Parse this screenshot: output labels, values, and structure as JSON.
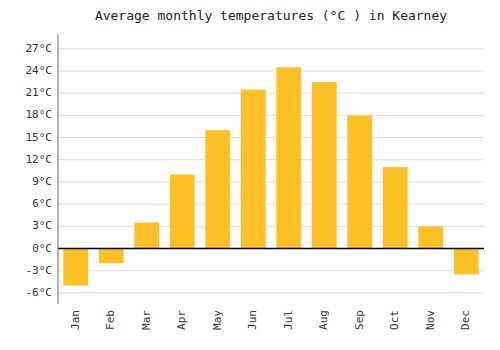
{
  "chart_data": {
    "type": "bar",
    "title": "Average monthly temperatures (°C ) in Kearney",
    "categories": [
      "Jan",
      "Feb",
      "Mar",
      "Apr",
      "May",
      "Jun",
      "Jul",
      "Aug",
      "Sep",
      "Oct",
      "Nov",
      "Dec"
    ],
    "values": [
      -5.0,
      -2.0,
      3.5,
      10.0,
      16.0,
      21.5,
      24.5,
      22.5,
      18.0,
      11.0,
      3.0,
      -3.5
    ],
    "color": "#FFC125",
    "ylim": [
      -7.5,
      29
    ],
    "yticks": [
      {
        "value": -6,
        "label": "-6°C"
      },
      {
        "value": -3,
        "label": "-3°C"
      },
      {
        "value": 0,
        "label": "0°C"
      },
      {
        "value": 3,
        "label": "3°C"
      },
      {
        "value": 6,
        "label": "6°C"
      },
      {
        "value": 9,
        "label": "9°C"
      },
      {
        "value": 12,
        "label": "12°C"
      },
      {
        "value": 15,
        "label": "15°C"
      },
      {
        "value": 18,
        "label": "18°C"
      },
      {
        "value": 21,
        "label": "21°C"
      },
      {
        "value": 24,
        "label": "24°C"
      },
      {
        "value": 27,
        "label": "27°C"
      }
    ],
    "grid": true
  }
}
